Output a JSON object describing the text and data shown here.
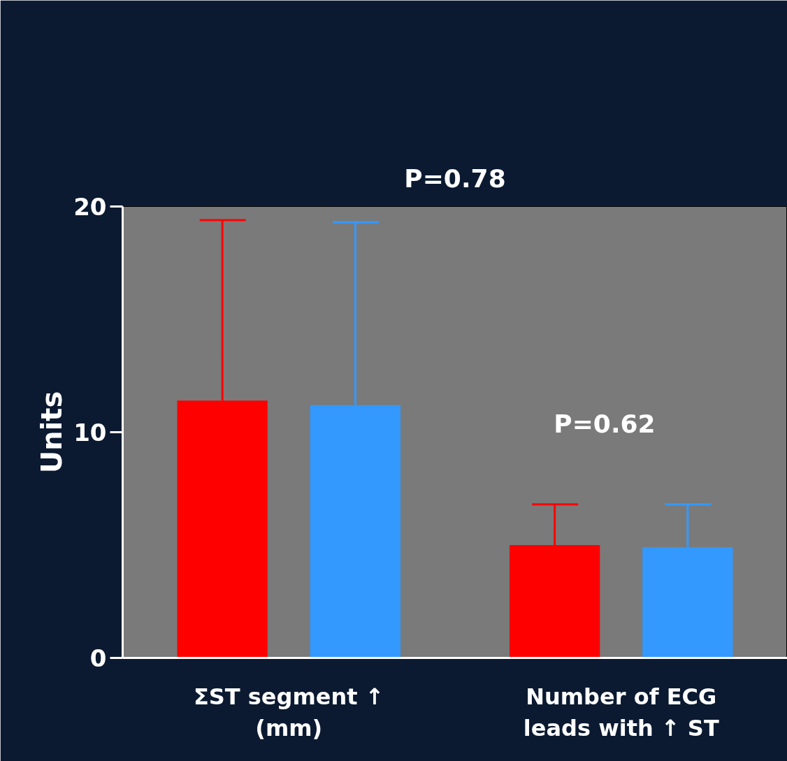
{
  "chart_data": {
    "type": "bar",
    "ylabel": "Units",
    "categories": [
      "ΣST segment ↑\n(mm)",
      "Number of ECG\nleads with ↑ ST"
    ],
    "series": [
      {
        "color": "#ff0000",
        "values": [
          11.4,
          5.0
        ],
        "errors": [
          [
            11.4,
            19.4
          ],
          [
            5.0,
            6.8
          ]
        ]
      },
      {
        "color": "#3399ff",
        "values": [
          11.2,
          4.9
        ],
        "errors": [
          [
            11.2,
            19.3
          ],
          [
            4.9,
            6.8
          ]
        ]
      }
    ],
    "ylim": [
      0,
      20
    ],
    "yticks": [
      0,
      10,
      20
    ],
    "grid": false,
    "annotations": [
      "P=0.78",
      "P=0.62"
    ]
  }
}
